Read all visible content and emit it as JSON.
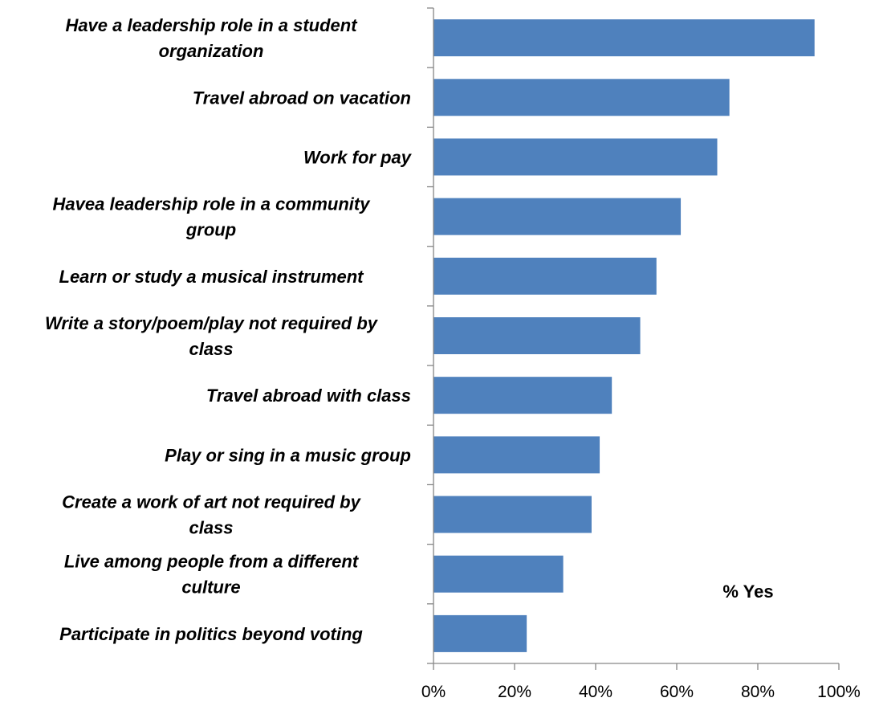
{
  "chart_data": {
    "type": "bar",
    "orientation": "horizontal",
    "categories": [
      "Have a leadership role in a student organization",
      "Travel abroad on vacation",
      "Work for pay",
      "Havea  leadership role in a community group",
      "Learn or study a musical instrument",
      "Write a story/poem/play not required by class",
      "Travel abroad with class",
      "Play or sing in a music group",
      "Create a work of art not required by class",
      "Live among people from a different culture",
      "Participate in politics beyond voting"
    ],
    "label_lines": [
      [
        "Have a leadership role in a student",
        "organization"
      ],
      [
        "Travel abroad on vacation"
      ],
      [
        "Work for pay"
      ],
      [
        "Havea  leadership role in a community",
        "group"
      ],
      [
        "Learn or study a musical instrument"
      ],
      [
        "Write a story/poem/play not required by",
        "class"
      ],
      [
        "Travel abroad with class"
      ],
      [
        "Play or sing in a music group"
      ],
      [
        "Create a work of art not required by",
        "class"
      ],
      [
        "Live among people from a different",
        "culture"
      ],
      [
        "Participate in politics beyond voting"
      ]
    ],
    "values": [
      94,
      73,
      70,
      61,
      55,
      51,
      44,
      41,
      39,
      32,
      23
    ],
    "unit": "%",
    "xlim": [
      0,
      100
    ],
    "xticks": [
      "0%",
      "20%",
      "40%",
      "60%",
      "80%",
      "100%"
    ],
    "annotation": "% Yes",
    "bar_color": "#4F81BD",
    "axis_color": "#868686",
    "grid": false,
    "legend": false
  }
}
